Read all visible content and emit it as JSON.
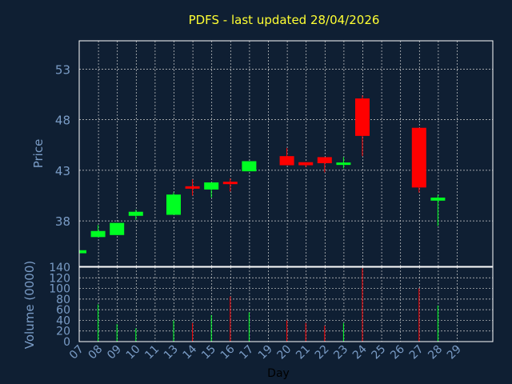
{
  "chart_data": {
    "type": "candlestick",
    "title": "PDFS - last updated 28/04/2026",
    "xlabel": "Day",
    "ylabel": "Price",
    "volume_ylabel": "Volume (0000)",
    "x_ticks": [
      "07",
      "08",
      "09",
      "10",
      "11",
      "13",
      "14",
      "15",
      "16",
      "17",
      "19",
      "20",
      "21",
      "22",
      "23",
      "24",
      "25",
      "26",
      "27",
      "28",
      "29"
    ],
    "price_ticks": [
      38,
      43,
      48,
      53
    ],
    "volume_ticks": [
      0,
      20,
      40,
      60,
      80,
      100,
      120,
      140
    ],
    "price_range": [
      33.5,
      55.8
    ],
    "volume_range": [
      0,
      140
    ],
    "grid": true,
    "colors": {
      "background": "#0f1f33",
      "title": "#ffff33",
      "axis_text": "#7a9cc6",
      "up": "#00ff22",
      "down": "#ff0000",
      "grid": "#d0d0d0"
    },
    "candles": [
      {
        "day": "07",
        "open": 34.8,
        "close": 35.1,
        "high": 35.1,
        "low": 34.8,
        "volume": 0
      },
      {
        "day": "08",
        "open": 36.4,
        "close": 37.0,
        "high": 37.6,
        "low": 36.4,
        "volume": 70
      },
      {
        "day": "09",
        "open": 36.6,
        "close": 37.8,
        "high": 37.8,
        "low": 36.6,
        "volume": 33
      },
      {
        "day": "10",
        "open": 38.5,
        "close": 38.9,
        "high": 39.1,
        "low": 38.1,
        "volume": 25
      },
      {
        "day": "13",
        "open": 38.6,
        "close": 40.6,
        "high": 40.8,
        "low": 38.6,
        "volume": 40
      },
      {
        "day": "14",
        "open": 41.4,
        "close": 41.2,
        "high": 42.1,
        "low": 40.5,
        "volume": 35
      },
      {
        "day": "15",
        "open": 41.1,
        "close": 41.8,
        "high": 41.8,
        "low": 40.3,
        "volume": 50
      },
      {
        "day": "16",
        "open": 41.8,
        "close": 41.7,
        "high": 42.2,
        "low": 40.9,
        "volume": 85
      },
      {
        "day": "17",
        "open": 42.9,
        "close": 43.9,
        "high": 43.9,
        "low": 42.9,
        "volume": 55
      },
      {
        "day": "20",
        "open": 44.4,
        "close": 43.5,
        "high": 45.2,
        "low": 43.5,
        "volume": 40
      },
      {
        "day": "21",
        "open": 43.8,
        "close": 43.5,
        "high": 43.8,
        "low": 43.3,
        "volume": 35
      },
      {
        "day": "22",
        "open": 44.3,
        "close": 43.7,
        "high": 44.3,
        "low": 42.8,
        "volume": 30
      },
      {
        "day": "23",
        "open": 43.6,
        "close": 43.7,
        "high": 44.3,
        "low": 43.2,
        "volume": 35
      },
      {
        "day": "24",
        "open": 50.1,
        "close": 46.4,
        "high": 50.4,
        "low": 44.4,
        "volume": 138
      },
      {
        "day": "27",
        "open": 47.2,
        "close": 41.3,
        "high": 47.2,
        "low": 40.8,
        "volume": 100
      },
      {
        "day": "28",
        "open": 40.0,
        "close": 40.3,
        "high": 40.6,
        "low": 37.5,
        "volume": 68
      }
    ]
  }
}
